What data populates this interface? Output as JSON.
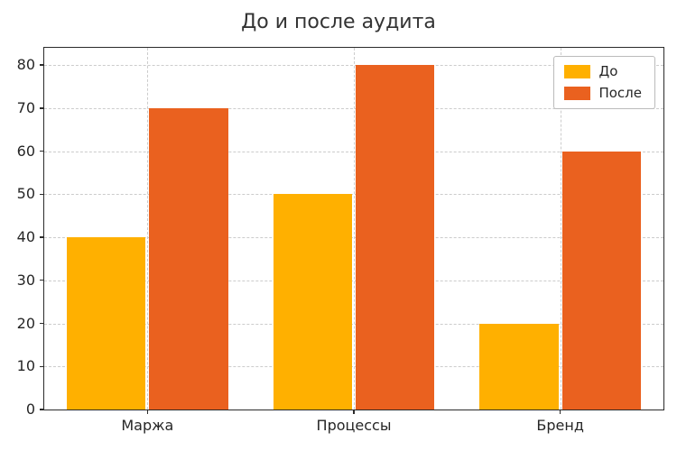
{
  "chart_data": {
    "type": "bar",
    "title": "До и после аудита",
    "categories": [
      "Маржа",
      "Процессы",
      "Бренд"
    ],
    "series": [
      {
        "name": "До",
        "color": "#FFB000",
        "values": [
          40,
          50,
          20
        ]
      },
      {
        "name": "После",
        "color": "#EA611F",
        "values": [
          70,
          80,
          60
        ]
      }
    ],
    "xlabel": "",
    "ylabel": "",
    "ylim": [
      0,
      84
    ],
    "yticks": [
      0,
      10,
      20,
      30,
      40,
      50,
      60,
      70,
      80
    ],
    "grid": "dashed, horizontal and vertical",
    "legend_position": "upper right",
    "colors": {
      "axis": "#2b2b2b",
      "grid": "#cccccc",
      "text": "#262626",
      "title": "#333333",
      "background": "#ffffff"
    }
  }
}
